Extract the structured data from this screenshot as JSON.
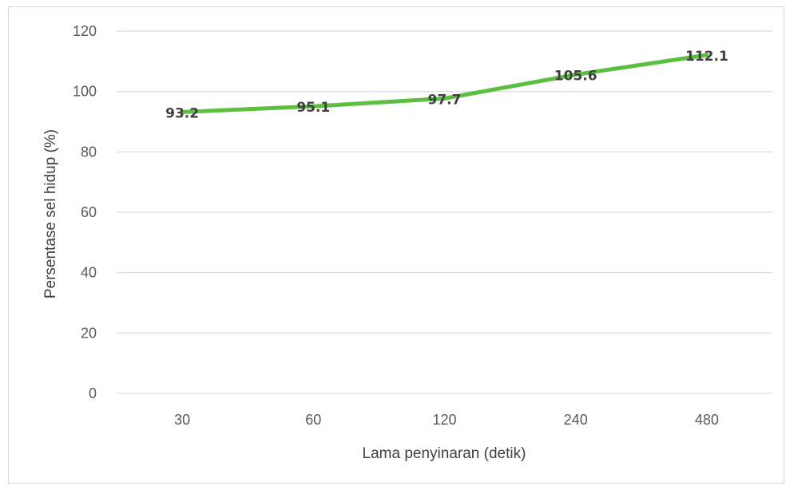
{
  "chart_data": {
    "type": "line",
    "categories": [
      "30",
      "60",
      "120",
      "240",
      "480"
    ],
    "series": [
      {
        "values": [
          93.2,
          95.1,
          97.7,
          105.6,
          112.1
        ],
        "color": "#5cbf3f"
      }
    ],
    "data_labels": [
      "93.2",
      "95.1",
      "97.7",
      "105.6",
      "112.1"
    ],
    "xlabel": "Lama penyinaran (detik)",
    "ylabel": "Persentase sel hidup (%)",
    "ylim": [
      0,
      120
    ],
    "yticks": [
      0,
      20,
      40,
      60,
      80,
      100,
      120
    ],
    "grid": true,
    "gridline_color": "#d9d9d9"
  }
}
